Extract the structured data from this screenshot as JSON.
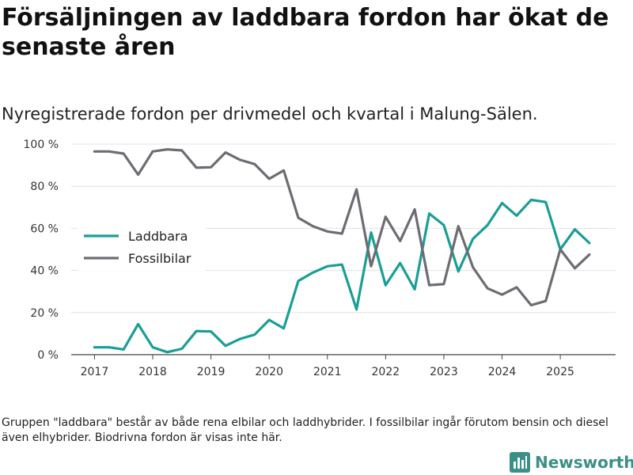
{
  "title": "Försäljningen av laddbara fordon har ökat de senaste åren",
  "subtitle": "Nyregistrerade fordon per drivmedel och kvartal i Malung-Sälen.",
  "footnote": "Gruppen \"laddbara\" består av både rena elbilar och laddhybrider. I fossilbilar ingår förutom bensin och diesel även elhybrider. Biodrivna fordon är visas inte här.",
  "brand": {
    "name": "Newsworthy",
    "icon": "newsworthy-logo-icon",
    "color": "#3a8f86"
  },
  "chart_data": {
    "type": "line",
    "title": "Försäljningen av laddbara fordon har ökat de senaste åren",
    "xlabel": "",
    "ylabel": "",
    "x": [
      2017.0,
      2017.25,
      2017.5,
      2017.75,
      2018.0,
      2018.25,
      2018.5,
      2018.75,
      2019.0,
      2019.25,
      2019.5,
      2019.75,
      2020.0,
      2020.25,
      2020.5,
      2020.75,
      2021.0,
      2021.25,
      2021.5,
      2021.75,
      2022.0,
      2022.25,
      2022.5,
      2022.75,
      2023.0,
      2023.25,
      2023.5,
      2023.75,
      2024.0,
      2024.25,
      2024.5,
      2024.75,
      2025.0,
      2025.25,
      2025.5
    ],
    "xlim": [
      2016.6,
      2025.95
    ],
    "ylim": [
      0,
      100
    ],
    "x_ticks": [
      2017,
      2018,
      2019,
      2020,
      2021,
      2022,
      2023,
      2024,
      2025
    ],
    "x_tick_labels": [
      "2017",
      "2018",
      "2019",
      "2020",
      "2021",
      "2022",
      "2023",
      "2024",
      "2025"
    ],
    "y_ticks": [
      0,
      20,
      40,
      60,
      80,
      100
    ],
    "y_tick_labels": [
      "0 %",
      "20 %",
      "40 %",
      "60 %",
      "80 %",
      "100 %"
    ],
    "grid": true,
    "legend_position": "middle-left",
    "series": [
      {
        "name": "Laddbara",
        "color": "#1a9e96",
        "values": [
          3.5,
          3.5,
          2.5,
          14.5,
          3.5,
          1.2,
          2.8,
          11.2,
          11.0,
          4.2,
          7.5,
          9.5,
          16.5,
          12.5,
          35.0,
          39.0,
          42.0,
          42.8,
          21.5,
          58.0,
          33.0,
          43.5,
          31.0,
          67.0,
          61.5,
          39.5,
          55.0,
          61.5,
          72.0,
          66.0,
          73.5,
          72.5,
          50.0,
          59.5,
          53.0
        ]
      },
      {
        "name": "Fossilbilar",
        "color": "#6e6c72",
        "values": [
          96.5,
          96.5,
          95.5,
          85.5,
          96.5,
          97.5,
          97.0,
          88.8,
          89.0,
          96.0,
          92.5,
          90.5,
          83.5,
          87.5,
          65.0,
          61.0,
          58.5,
          57.5,
          78.5,
          42.0,
          65.5,
          54.0,
          69.0,
          33.0,
          33.5,
          61.0,
          41.5,
          31.5,
          28.5,
          32.0,
          23.5,
          25.5,
          50.0,
          41.0,
          47.5
        ]
      }
    ]
  }
}
